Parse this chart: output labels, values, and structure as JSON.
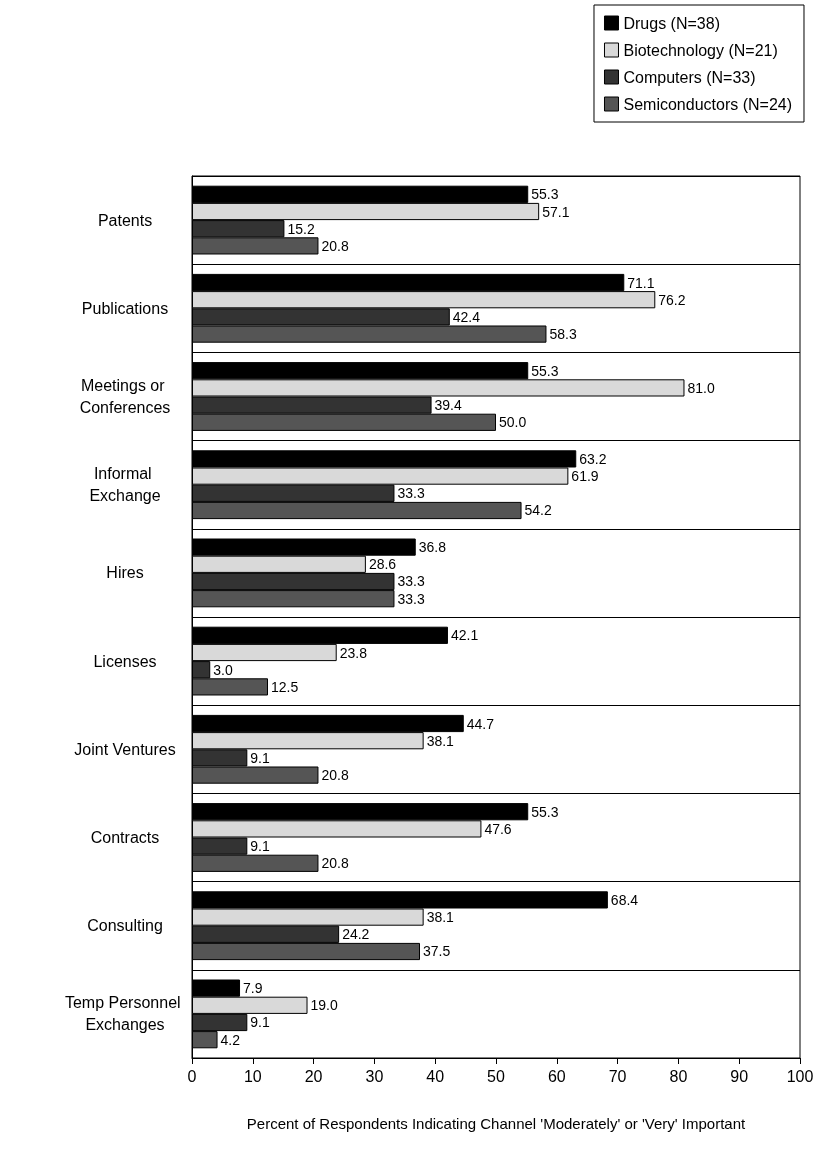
{
  "chart_data": {
    "type": "bar",
    "orientation": "horizontal",
    "xlabel": "Percent of Respondents Indicating Channel 'Moderately' or 'Very' Important",
    "categories": [
      "Patents",
      "Publications",
      "Meetings or Conferences",
      "Informal Exchange",
      "Hires",
      "Licenses",
      "Joint Ventures",
      "Contracts",
      "Consulting",
      "Temp Personnel Exchanges"
    ],
    "series": [
      {
        "name": "Drugs (N=38)",
        "color": "#000000",
        "values": [
          55.3,
          71.1,
          55.3,
          63.2,
          36.8,
          42.1,
          44.7,
          55.3,
          68.4,
          7.9
        ],
        "value_labels": [
          "55.3",
          "71.1",
          "55.3",
          "63.2",
          "36.8",
          "42.1",
          "44.7",
          "55.3",
          "68.4",
          "7.9"
        ]
      },
      {
        "name": "Biotechnology (N=21)",
        "color": "#d9d9d9",
        "values": [
          57.1,
          76.2,
          81.0,
          61.9,
          28.6,
          23.8,
          38.1,
          47.6,
          38.1,
          19.0
        ],
        "value_labels": [
          "57.1",
          "76.2",
          "81.0",
          "61.9",
          "28.6",
          "23.8",
          "38.1",
          "47.6",
          "38.1",
          "19.0"
        ]
      },
      {
        "name": "Computers (N=33)",
        "color": "#333333",
        "values": [
          15.2,
          42.4,
          39.4,
          33.3,
          33.3,
          3.0,
          9.1,
          9.1,
          24.2,
          9.1
        ],
        "value_labels": [
          "15.2",
          "42.4",
          "39.4",
          "33.3",
          "33.3",
          "3.0",
          "9.1",
          "9.1",
          "24.2",
          "9.1"
        ]
      },
      {
        "name": "Semiconductors (N=24)",
        "color": "#555555",
        "values": [
          20.8,
          58.3,
          50.0,
          54.2,
          33.3,
          12.5,
          20.8,
          20.8,
          37.5,
          4.2
        ],
        "value_labels": [
          "20.8",
          "58.3",
          "50.0",
          "54.2",
          "33.3",
          "12.5",
          "20.8",
          "20.8",
          "37.5",
          "4.2"
        ]
      }
    ],
    "xlim": [
      0,
      100
    ],
    "xticks": [
      0,
      10,
      20,
      30,
      40,
      50,
      60,
      70,
      80,
      90,
      100
    ],
    "grid": "y",
    "legend": "top right"
  }
}
